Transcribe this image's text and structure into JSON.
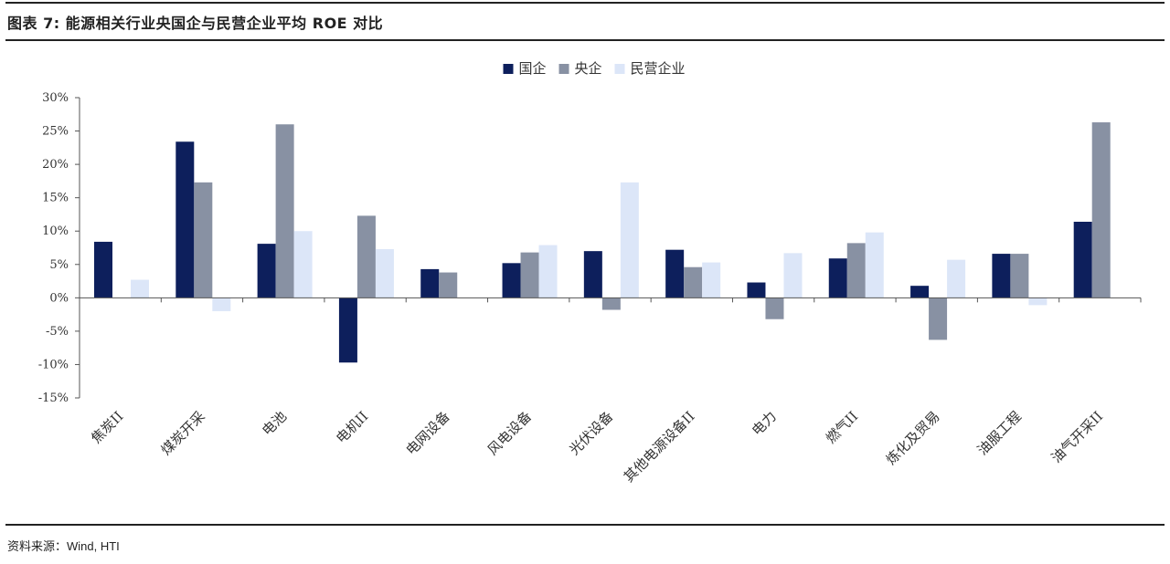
{
  "header": {
    "title": "图表 7: 能源相关行业央国企与民营企业平均 ROE 对比"
  },
  "footer": {
    "source_label": "资料来源：",
    "source_text": "Wind, HTI"
  },
  "chart_data": {
    "type": "bar",
    "title": "",
    "xlabel": "",
    "ylabel": "",
    "ylim": [
      -15,
      30
    ],
    "yticks": [
      30,
      25,
      20,
      15,
      10,
      5,
      0,
      -5,
      -10,
      -15
    ],
    "ytick_labels": [
      "30%",
      "25%",
      "20%",
      "15%",
      "10%",
      "5%",
      "0%",
      "-5%",
      "-10%",
      "-15%"
    ],
    "grid": false,
    "legend": "top-center",
    "categories": [
      "焦炭II",
      "煤炭开采",
      "电池",
      "电机II",
      "电网设备",
      "风电设备",
      "光伏设备",
      "其他电源设备II",
      "电力",
      "燃气II",
      "炼化及贸易",
      "油服工程",
      "油气开采II"
    ],
    "series": [
      {
        "name": "国企",
        "color": "#0d1f5c",
        "values": [
          8.4,
          23.4,
          8.1,
          -9.7,
          4.3,
          5.2,
          7.0,
          7.2,
          2.3,
          5.9,
          1.8,
          6.6,
          11.4
        ]
      },
      {
        "name": "央企",
        "color": "#8891a3",
        "values": [
          null,
          17.3,
          26.0,
          12.3,
          3.8,
          6.8,
          -1.8,
          4.6,
          -3.2,
          8.2,
          -6.3,
          6.6,
          26.3
        ]
      },
      {
        "name": "民营企业",
        "color": "#dce6f8",
        "values": [
          2.7,
          -2.0,
          10.0,
          7.3,
          null,
          7.9,
          17.3,
          5.3,
          6.7,
          9.8,
          5.7,
          -1.1,
          null
        ]
      }
    ]
  }
}
